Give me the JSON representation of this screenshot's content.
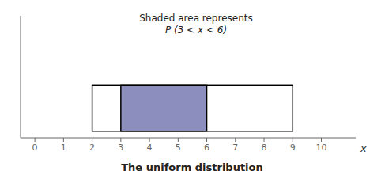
{
  "chart_data": {
    "type": "area",
    "title": "The uniform distribution",
    "xlabel": "x",
    "annotations": [
      "Shaded area represents",
      "P (3 < x < 6)"
    ],
    "x": [
      2,
      3,
      6,
      9
    ],
    "series": [
      {
        "values": [
          0.14,
          0.14,
          0.14,
          0.14
        ],
        "color": "white"
      },
      {
        "values": [
          null,
          0.14,
          0.14,
          null
        ],
        "color": "#8c8fbe"
      }
    ],
    "xlim": [
      -0.5,
      11.2
    ],
    "xticks": [
      0,
      1,
      2,
      3,
      4,
      5,
      6,
      7,
      8,
      9,
      10
    ],
    "ylim": [
      -0.02,
      0.35
    ],
    "tick_labels": "x"
  }
}
